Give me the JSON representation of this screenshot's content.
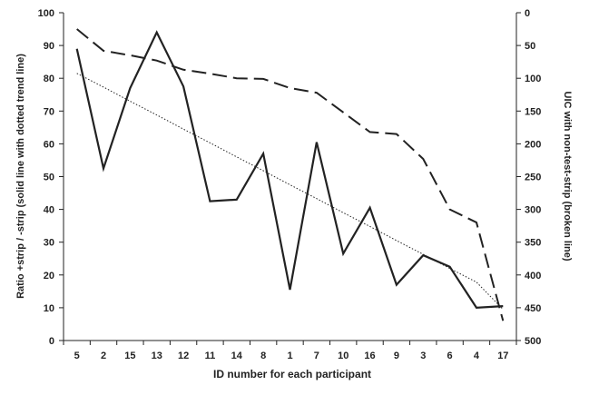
{
  "chart_data": {
    "type": "line",
    "categories": [
      "5",
      "2",
      "15",
      "13",
      "12",
      "11",
      "14",
      "8",
      "1",
      "7",
      "10",
      "16",
      "9",
      "3",
      "6",
      "4",
      "17"
    ],
    "series": [
      {
        "axis": "left",
        "style": "solid",
        "values": [
          89,
          52.5,
          77,
          94,
          77.5,
          42.5,
          43,
          57,
          15.5,
          60.5,
          26.5,
          40.5,
          17,
          26,
          22.5,
          10,
          10.5
        ]
      },
      {
        "axis": "left",
        "style": "dotted-trend",
        "values": [
          81.5,
          77.3,
          73.0,
          68.8,
          64.5,
          60.3,
          56.0,
          51.8,
          47.5,
          43.3,
          39.0,
          34.8,
          30.5,
          26.3,
          22.0,
          17.8,
          9.5
        ]
      },
      {
        "axis": "right",
        "style": "dashed",
        "values": [
          25,
          58,
          65,
          73,
          87,
          93,
          100,
          101,
          115,
          122,
          152,
          182,
          185,
          223,
          300,
          320,
          470
        ]
      }
    ],
    "xlabel": "ID number for each participant",
    "ylabel": "Ratio +strip / -strip (solid line with dotted trend line)",
    "y2label": "UIC with non-test-strip (broken line)",
    "ylim": [
      0,
      100
    ],
    "y2lim": [
      0,
      500
    ],
    "yticks": [
      0,
      10,
      20,
      30,
      40,
      50,
      60,
      70,
      80,
      90,
      100
    ],
    "y2ticks": [
      0,
      50,
      100,
      150,
      200,
      250,
      300,
      350,
      400,
      450,
      500
    ],
    "y2_inverted": true,
    "grid": false,
    "legend": "none"
  },
  "colors": {
    "line": "#222222",
    "axis": "#222222",
    "background": "#ffffff"
  }
}
